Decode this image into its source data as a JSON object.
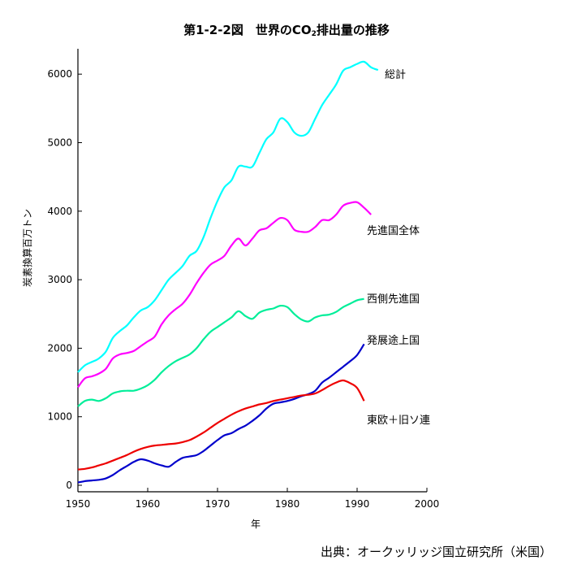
{
  "title": {
    "prefix": "第1-2-2図　世界のCO",
    "subscript": "2",
    "suffix": "排出量の推移"
  },
  "source": "出典：オークッリッジ国立研究所（米国）",
  "chart_data": {
    "type": "line",
    "title": "第1-2-2図　世界のCO2排出量の推移",
    "xlabel": "年",
    "ylabel": "炭素換算百万トン",
    "xlim": [
      1950,
      2000
    ],
    "ylim": [
      0,
      6300
    ],
    "xticks": [
      1950,
      1960,
      1970,
      1980,
      1990,
      2000
    ],
    "yticks": [
      0,
      1000,
      2000,
      3000,
      4000,
      5000,
      6000
    ],
    "grid": false,
    "legend": "none (series labeled directly at line ends)",
    "series": [
      {
        "name": "総計",
        "color": "#00ffff",
        "points": [
          [
            1950,
            1650
          ],
          [
            1951,
            1750
          ],
          [
            1952,
            1800
          ],
          [
            1953,
            1850
          ],
          [
            1954,
            1950
          ],
          [
            1955,
            2150
          ],
          [
            1956,
            2250
          ],
          [
            1957,
            2330
          ],
          [
            1958,
            2450
          ],
          [
            1959,
            2550
          ],
          [
            1960,
            2600
          ],
          [
            1961,
            2700
          ],
          [
            1962,
            2850
          ],
          [
            1963,
            3000
          ],
          [
            1964,
            3100
          ],
          [
            1965,
            3200
          ],
          [
            1966,
            3350
          ],
          [
            1967,
            3420
          ],
          [
            1968,
            3620
          ],
          [
            1969,
            3900
          ],
          [
            1970,
            4150
          ],
          [
            1971,
            4350
          ],
          [
            1972,
            4450
          ],
          [
            1973,
            4650
          ],
          [
            1974,
            4650
          ],
          [
            1975,
            4650
          ],
          [
            1976,
            4850
          ],
          [
            1977,
            5050
          ],
          [
            1978,
            5150
          ],
          [
            1979,
            5350
          ],
          [
            1980,
            5300
          ],
          [
            1981,
            5150
          ],
          [
            1982,
            5100
          ],
          [
            1983,
            5150
          ],
          [
            1984,
            5350
          ],
          [
            1985,
            5550
          ],
          [
            1986,
            5700
          ],
          [
            1987,
            5850
          ],
          [
            1988,
            6050
          ],
          [
            1989,
            6100
          ],
          [
            1990,
            6150
          ],
          [
            1991,
            6180
          ],
          [
            1992,
            6100
          ],
          [
            1993,
            6060
          ]
        ]
      },
      {
        "name": "先進国全体",
        "color": "#ff00ff",
        "points": [
          [
            1950,
            1430
          ],
          [
            1951,
            1560
          ],
          [
            1952,
            1590
          ],
          [
            1953,
            1630
          ],
          [
            1954,
            1700
          ],
          [
            1955,
            1850
          ],
          [
            1956,
            1910
          ],
          [
            1957,
            1930
          ],
          [
            1958,
            1960
          ],
          [
            1959,
            2030
          ],
          [
            1960,
            2100
          ],
          [
            1961,
            2170
          ],
          [
            1962,
            2350
          ],
          [
            1963,
            2480
          ],
          [
            1964,
            2570
          ],
          [
            1965,
            2650
          ],
          [
            1966,
            2780
          ],
          [
            1967,
            2950
          ],
          [
            1968,
            3100
          ],
          [
            1969,
            3220
          ],
          [
            1970,
            3280
          ],
          [
            1971,
            3350
          ],
          [
            1972,
            3500
          ],
          [
            1973,
            3600
          ],
          [
            1974,
            3500
          ],
          [
            1975,
            3600
          ],
          [
            1976,
            3720
          ],
          [
            1977,
            3750
          ],
          [
            1978,
            3830
          ],
          [
            1979,
            3900
          ],
          [
            1980,
            3870
          ],
          [
            1981,
            3730
          ],
          [
            1982,
            3700
          ],
          [
            1983,
            3700
          ],
          [
            1984,
            3770
          ],
          [
            1985,
            3870
          ],
          [
            1986,
            3870
          ],
          [
            1987,
            3950
          ],
          [
            1988,
            4080
          ],
          [
            1989,
            4120
          ],
          [
            1990,
            4130
          ],
          [
            1991,
            4050
          ],
          [
            1992,
            3950
          ]
        ]
      },
      {
        "name": "西側先進国",
        "color": "#00ee99",
        "points": [
          [
            1950,
            1150
          ],
          [
            1951,
            1230
          ],
          [
            1952,
            1250
          ],
          [
            1953,
            1230
          ],
          [
            1954,
            1270
          ],
          [
            1955,
            1340
          ],
          [
            1956,
            1370
          ],
          [
            1957,
            1380
          ],
          [
            1958,
            1380
          ],
          [
            1959,
            1410
          ],
          [
            1960,
            1460
          ],
          [
            1961,
            1540
          ],
          [
            1962,
            1650
          ],
          [
            1963,
            1740
          ],
          [
            1964,
            1810
          ],
          [
            1965,
            1860
          ],
          [
            1966,
            1910
          ],
          [
            1967,
            2000
          ],
          [
            1968,
            2130
          ],
          [
            1969,
            2240
          ],
          [
            1970,
            2310
          ],
          [
            1971,
            2380
          ],
          [
            1972,
            2450
          ],
          [
            1973,
            2540
          ],
          [
            1974,
            2470
          ],
          [
            1975,
            2430
          ],
          [
            1976,
            2520
          ],
          [
            1977,
            2560
          ],
          [
            1978,
            2580
          ],
          [
            1979,
            2620
          ],
          [
            1980,
            2600
          ],
          [
            1981,
            2500
          ],
          [
            1982,
            2420
          ],
          [
            1983,
            2390
          ],
          [
            1984,
            2450
          ],
          [
            1985,
            2480
          ],
          [
            1986,
            2490
          ],
          [
            1987,
            2530
          ],
          [
            1988,
            2600
          ],
          [
            1989,
            2650
          ],
          [
            1990,
            2700
          ],
          [
            1991,
            2720
          ]
        ]
      },
      {
        "name": "発展途上国",
        "color": "#0000cc",
        "points": [
          [
            1950,
            40
          ],
          [
            1951,
            60
          ],
          [
            1952,
            70
          ],
          [
            1953,
            80
          ],
          [
            1954,
            100
          ],
          [
            1955,
            150
          ],
          [
            1956,
            220
          ],
          [
            1957,
            280
          ],
          [
            1958,
            340
          ],
          [
            1959,
            380
          ],
          [
            1960,
            360
          ],
          [
            1961,
            320
          ],
          [
            1962,
            290
          ],
          [
            1963,
            270
          ],
          [
            1964,
            340
          ],
          [
            1965,
            400
          ],
          [
            1966,
            420
          ],
          [
            1967,
            440
          ],
          [
            1968,
            500
          ],
          [
            1969,
            580
          ],
          [
            1970,
            660
          ],
          [
            1971,
            730
          ],
          [
            1972,
            760
          ],
          [
            1973,
            820
          ],
          [
            1974,
            870
          ],
          [
            1975,
            940
          ],
          [
            1976,
            1020
          ],
          [
            1977,
            1120
          ],
          [
            1978,
            1190
          ],
          [
            1979,
            1210
          ],
          [
            1980,
            1230
          ],
          [
            1981,
            1260
          ],
          [
            1982,
            1300
          ],
          [
            1983,
            1330
          ],
          [
            1984,
            1380
          ],
          [
            1985,
            1500
          ],
          [
            1986,
            1570
          ],
          [
            1987,
            1650
          ],
          [
            1988,
            1730
          ],
          [
            1989,
            1810
          ],
          [
            1990,
            1900
          ],
          [
            1991,
            2060
          ]
        ]
      },
      {
        "name": "東欧＋旧ソ連",
        "color": "#ee0000",
        "points": [
          [
            1950,
            230
          ],
          [
            1951,
            240
          ],
          [
            1952,
            260
          ],
          [
            1953,
            290
          ],
          [
            1954,
            320
          ],
          [
            1955,
            360
          ],
          [
            1956,
            400
          ],
          [
            1957,
            440
          ],
          [
            1958,
            490
          ],
          [
            1959,
            530
          ],
          [
            1960,
            560
          ],
          [
            1961,
            580
          ],
          [
            1962,
            590
          ],
          [
            1963,
            600
          ],
          [
            1964,
            610
          ],
          [
            1965,
            630
          ],
          [
            1966,
            660
          ],
          [
            1967,
            710
          ],
          [
            1968,
            770
          ],
          [
            1969,
            840
          ],
          [
            1970,
            910
          ],
          [
            1971,
            970
          ],
          [
            1972,
            1030
          ],
          [
            1973,
            1080
          ],
          [
            1974,
            1120
          ],
          [
            1975,
            1150
          ],
          [
            1976,
            1180
          ],
          [
            1977,
            1200
          ],
          [
            1978,
            1230
          ],
          [
            1979,
            1250
          ],
          [
            1980,
            1270
          ],
          [
            1981,
            1290
          ],
          [
            1982,
            1310
          ],
          [
            1983,
            1320
          ],
          [
            1984,
            1340
          ],
          [
            1985,
            1390
          ],
          [
            1986,
            1450
          ],
          [
            1987,
            1500
          ],
          [
            1988,
            1530
          ],
          [
            1989,
            1490
          ],
          [
            1990,
            1420
          ],
          [
            1991,
            1230
          ]
        ]
      }
    ]
  }
}
